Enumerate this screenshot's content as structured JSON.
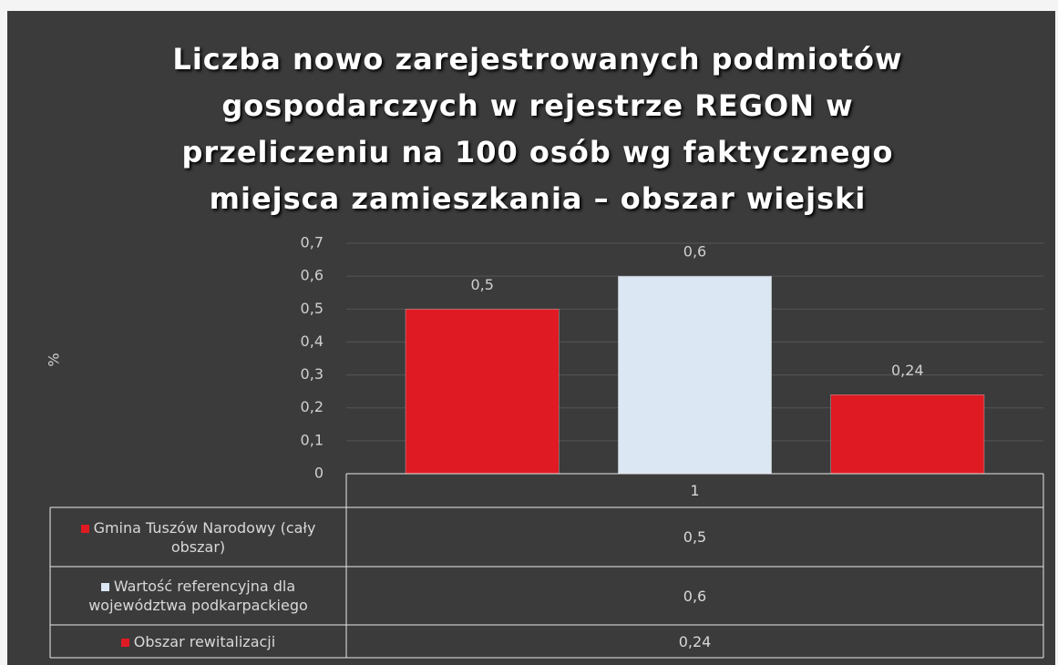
{
  "chart_data": {
    "type": "bar",
    "title": "Liczba nowo zarejestrowanych podmiotów\ngospodarczych w rejestrze REGON w\nprzeliczeniu na 100 osób wg faktycznego\nmiejsca zamieszkania – obszar wiejski",
    "y_label": "%",
    "categories": [
      "1"
    ],
    "series": [
      {
        "name": "Gmina Tuszów Narodowy (cały obszar)",
        "color": "#e01a22",
        "values": [
          0.5
        ],
        "value_labels": [
          "0,5"
        ]
      },
      {
        "name": "Wartość referencyjna dla województwa podkarpackiego",
        "color": "#dbe7f3",
        "values": [
          0.6
        ],
        "value_labels": [
          "0,6"
        ]
      },
      {
        "name": "Obszar rewitalizacji",
        "color": "#e01a22",
        "values": [
          0.24
        ],
        "value_labels": [
          "0,24"
        ]
      }
    ],
    "ylim": [
      0,
      0.7
    ],
    "yticks": [
      0,
      {
        "value": 0.1,
        "label": "0,1"
      },
      {
        "value": 0.2,
        "label": "0,2"
      },
      {
        "value": 0.3,
        "label": "0,3"
      },
      {
        "value": 0.4,
        "label": "0,4"
      },
      {
        "value": 0.5,
        "label": "0,5"
      },
      {
        "value": 0.6,
        "label": "0,6"
      },
      {
        "value": 0.7,
        "label": "0,7"
      }
    ],
    "grid": true,
    "data_table": true
  }
}
